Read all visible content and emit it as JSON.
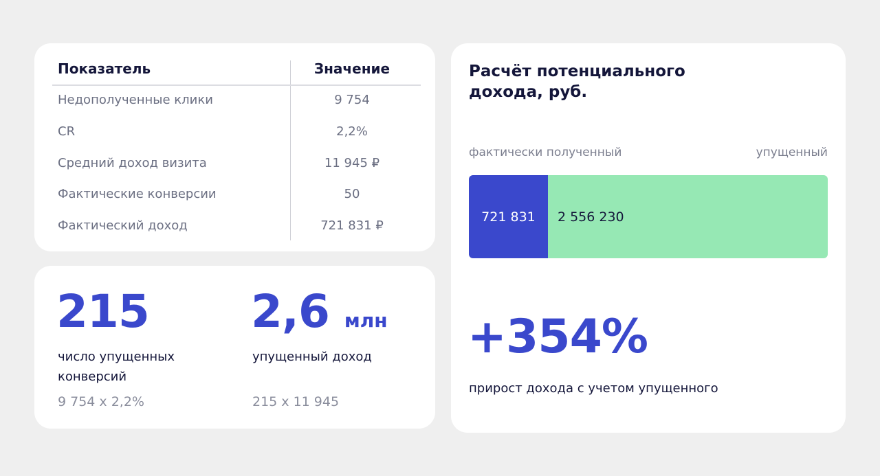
{
  "table": {
    "headers": [
      "Показатель",
      "Значение"
    ],
    "rows": [
      {
        "label": "Недополученные клики",
        "value": "9 754"
      },
      {
        "label": "CR",
        "value": "2,2%"
      },
      {
        "label": "Средний доход визита",
        "value": "11 945 ₽"
      },
      {
        "label": "Фактические конверсии",
        "value": "50"
      },
      {
        "label": "Фактический доход",
        "value": "721 831 ₽"
      }
    ]
  },
  "stats": {
    "conversions": {
      "value": "215",
      "label_line1": "число упущенных",
      "label_line2": "конверсий",
      "formula": "9 754 x 2,2%"
    },
    "income": {
      "value": "2,6",
      "unit": "млн",
      "label": "упущенный доход",
      "formula": "215 x 11 945"
    }
  },
  "growth": {
    "value": "+354%",
    "label": "прирост дохода с учетом упущенного"
  },
  "chart_data": {
    "type": "bar",
    "orientation": "horizontal-stacked",
    "title": "Расчёт потенциального дохода, руб.",
    "title_line1": "Расчёт потенциального",
    "title_line2": "дохода, руб.",
    "series": [
      {
        "name": "фактически полученный",
        "value": 721831,
        "label": "721 831",
        "color": "#3a48cc"
      },
      {
        "name": "упущенный",
        "value": 2556230,
        "label": "2 556 230",
        "color": "#96e8b4"
      }
    ]
  },
  "colors": {
    "accent": "#3a48cc",
    "green": "#96e8b4",
    "background": "#efefef",
    "text": "#14163a",
    "muted": "#6b6f82"
  }
}
